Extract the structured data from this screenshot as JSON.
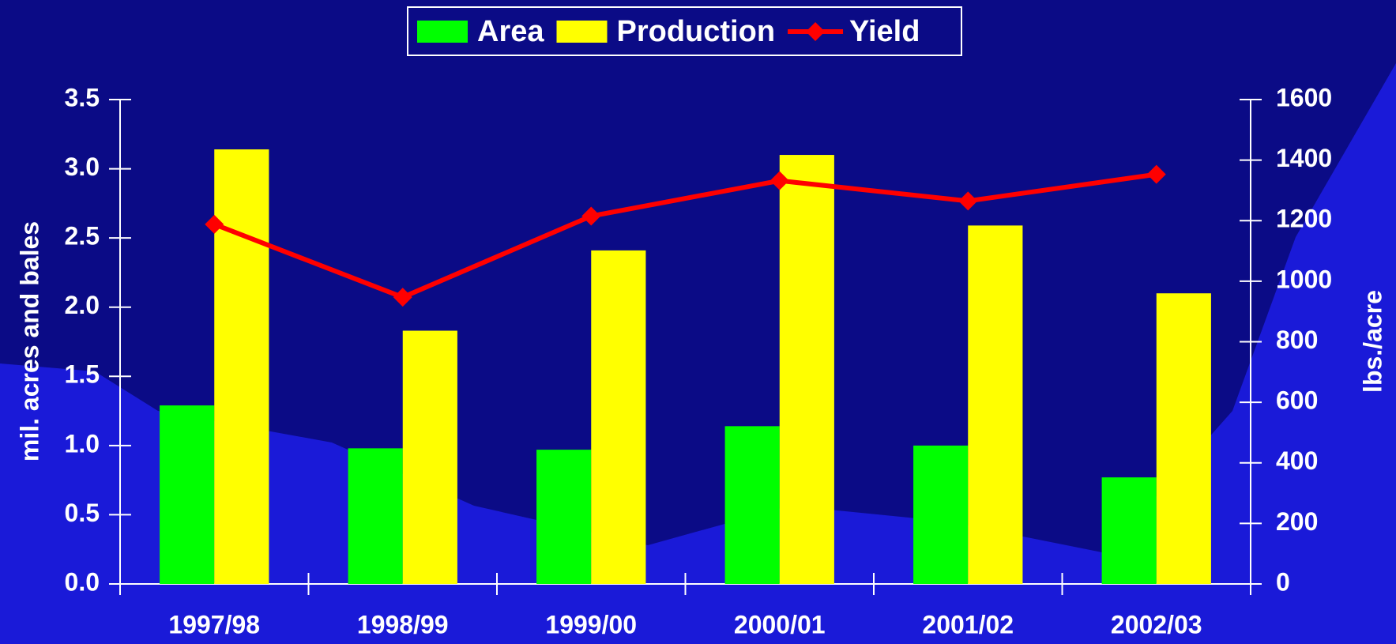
{
  "chart_data": {
    "type": "bar_line",
    "categories": [
      "1997/98",
      "1998/99",
      "1999/00",
      "2000/01",
      "2001/02",
      "2002/03"
    ],
    "series": [
      {
        "name": "Area",
        "color": "#00ff00",
        "values": [
          1.29,
          0.98,
          0.97,
          1.14,
          1.0,
          0.77
        ]
      },
      {
        "name": "Production",
        "color": "#ffff00",
        "values": [
          3.14,
          1.83,
          2.41,
          3.1,
          2.59,
          2.1
        ]
      },
      {
        "name": "Yield",
        "color": "#ff0000",
        "axis": "y2",
        "values": [
          1188,
          947,
          1215,
          1332,
          1265,
          1353
        ]
      }
    ],
    "ylabel": "mil. acres and bales",
    "y2label": "lbs./acre",
    "ylim": [
      0,
      3.5
    ],
    "yticks": [
      {
        "value": 0,
        "label": "0.0"
      },
      {
        "value": 0.5,
        "label": "0.5"
      },
      {
        "value": 1,
        "label": "1.0"
      },
      {
        "value": 1.5,
        "label": "1.5"
      },
      {
        "value": 2,
        "label": "2.0"
      },
      {
        "value": 2.5,
        "label": "2.5"
      },
      {
        "value": 3,
        "label": "3.0"
      },
      {
        "value": 3.5,
        "label": "3.5"
      }
    ],
    "y2lim": [
      0,
      1600
    ],
    "y2ticks": [
      0,
      200,
      400,
      600,
      800,
      1000,
      1200,
      1400,
      1600
    ],
    "legend": "top"
  }
}
